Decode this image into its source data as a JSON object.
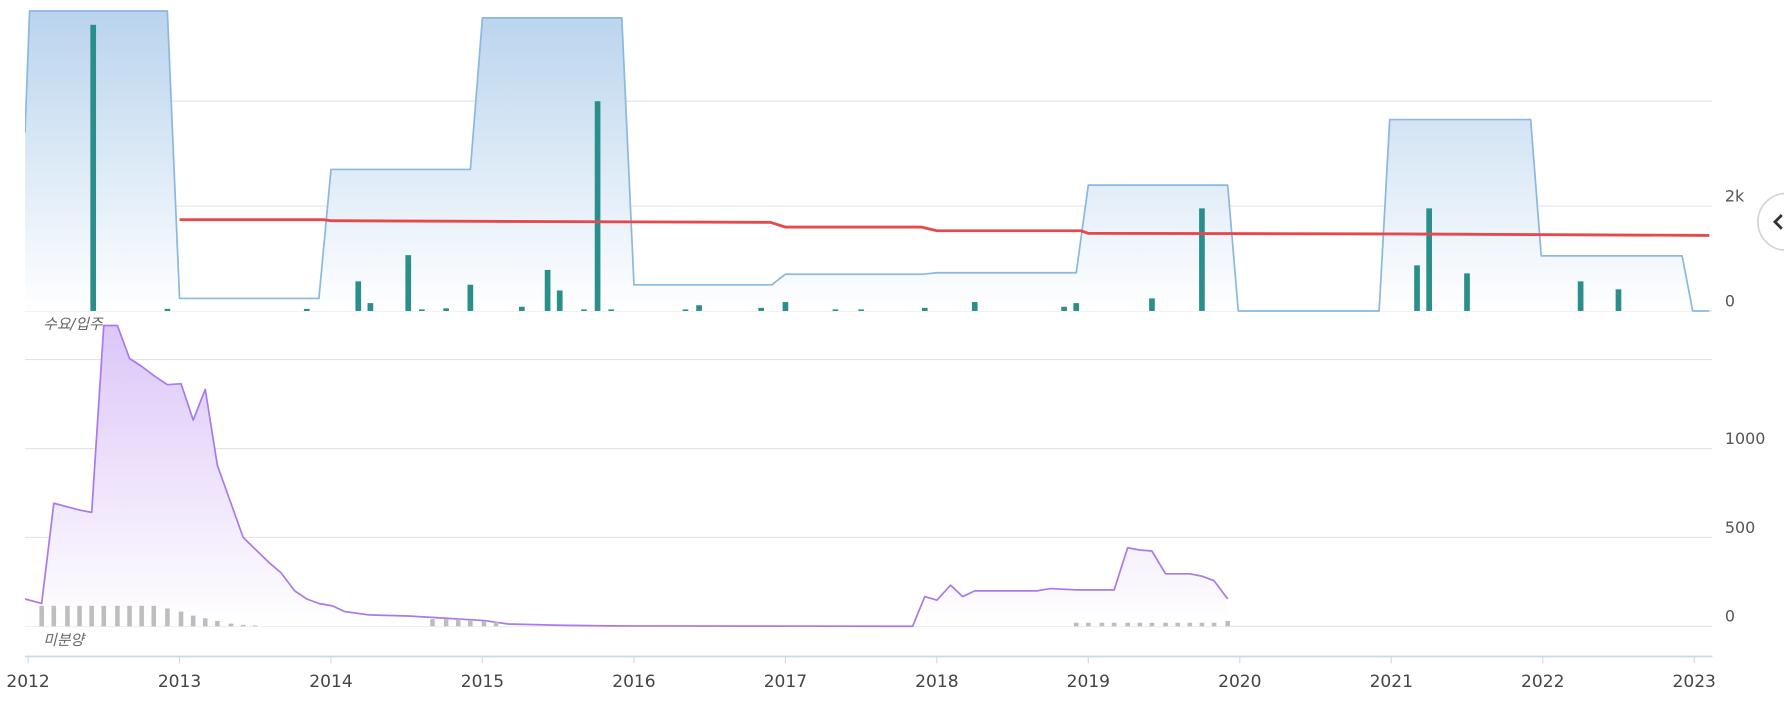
{
  "chart_data": [
    {
      "type": "combo",
      "label": "수요/입주",
      "xlim": [
        2011.98,
        2023.12
      ],
      "ylim": [
        -80,
        5930
      ],
      "yticks": [
        0,
        {
          "value": 2000,
          "label": "2k"
        },
        {
          "value": 4000,
          "label": null
        }
      ],
      "grid": true,
      "series": [
        {
          "kind": "area",
          "color": "#8ab8e0",
          "x": [
            2011.98,
            2012.01,
            2012.92,
            2013.0,
            2013.92,
            2014.0,
            2014.92,
            2015.0,
            2015.92,
            2016.0,
            2016.91,
            2017.0,
            2017.91,
            2018.0,
            2018.92,
            2019.0,
            2019.92,
            2019.99,
            2020.92,
            2020.99,
            2021.92,
            2021.99,
            2022.92,
            2022.99,
            2023.1
          ],
          "values": [
            3400,
            5720,
            5720,
            240,
            240,
            2700,
            2700,
            5590,
            5590,
            500,
            500,
            700,
            700,
            730,
            730,
            2400,
            2400,
            0,
            0,
            3650,
            3650,
            1050,
            1050,
            0,
            0
          ]
        },
        {
          "kind": "bar",
          "color": "#2a8f8a",
          "x": [
            2012.43,
            2012.92,
            2013.84,
            2014.18,
            2014.26,
            2014.51,
            2014.6,
            2014.76,
            2014.92,
            2015.26,
            2015.43,
            2015.51,
            2015.67,
            2015.76,
            2015.85,
            2016.34,
            2016.43,
            2016.84,
            2017.0,
            2017.33,
            2017.5,
            2017.92,
            2018.25,
            2018.84,
            2018.92,
            2019.42,
            2019.75,
            2021.17,
            2021.25,
            2021.5,
            2022.25,
            2022.5
          ],
          "values": [
            5457,
            40,
            40,
            565,
            150,
            1065,
            30,
            50,
            500,
            80,
            783,
            391,
            30,
            4000,
            30,
            30,
            110,
            60,
            170,
            30,
            30,
            60,
            170,
            80,
            150,
            240,
            1957,
            870,
            1957,
            717,
            565,
            413
          ]
        },
        {
          "kind": "line",
          "color": "#e5484d",
          "x": [
            2013.0,
            2013.95,
            2014.0,
            2015.0,
            2016.0,
            2016.9,
            2017.0,
            2017.9,
            2018.0,
            2018.95,
            2019.0,
            2021.0,
            2023.1
          ],
          "values": [
            1740,
            1740,
            1720,
            1710,
            1700,
            1690,
            1600,
            1600,
            1530,
            1530,
            1480,
            1470,
            1440
          ]
        }
      ]
    },
    {
      "type": "combo",
      "label": "미분양",
      "xlim": [
        2011.98,
        2023.12
      ],
      "ylim": [
        -170,
        1750
      ],
      "xticks": [
        2012,
        2013,
        2014,
        2015,
        2016,
        2017,
        2018,
        2019,
        2020,
        2021,
        2022,
        2023
      ],
      "yticks": [
        0,
        500,
        1000,
        {
          "value": 1500,
          "label": null
        }
      ],
      "grid": true,
      "series": [
        {
          "kind": "area",
          "color": "#a77be8",
          "x": [
            2011.98,
            2012.09,
            2012.17,
            2012.34,
            2012.42,
            2012.5,
            2012.59,
            2012.67,
            2012.75,
            2012.83,
            2012.92,
            2013.01,
            2013.09,
            2013.17,
            2013.25,
            2013.34,
            2013.42,
            2013.59,
            2013.67,
            2013.76,
            2013.84,
            2013.92,
            2014.01,
            2014.09,
            2014.25,
            2014.51,
            2014.76,
            2015.01,
            2015.17,
            2015.51,
            2015.84,
            2016.92,
            2017.84,
            2017.92,
            2018.0,
            2018.09,
            2018.17,
            2018.25,
            2018.66,
            2018.75,
            2018.92,
            2019.17,
            2019.26,
            2019.34,
            2019.42,
            2019.51,
            2019.67,
            2019.75,
            2019.83,
            2019.92
          ],
          "values": [
            154,
            128,
            692,
            654,
            641,
            1692,
            1692,
            1506,
            1462,
            1410,
            1359,
            1365,
            1160,
            1333,
            904,
            692,
            500,
            359,
            301,
            199,
            154,
            128,
            115,
            83,
            64,
            58,
            45,
            32,
            13,
            6,
            2,
            1,
            0,
            167,
            147,
            231,
            167,
            199,
            199,
            212,
            205,
            205,
            442,
            429,
            423,
            295,
            295,
            282,
            256,
            154
          ]
        },
        {
          "kind": "bar",
          "color": "#bdbdbd",
          "x": [
            2012.09,
            2012.17,
            2012.26,
            2012.34,
            2012.42,
            2012.5,
            2012.59,
            2012.67,
            2012.75,
            2012.83,
            2012.92,
            2013.01,
            2013.09,
            2013.17,
            2013.25,
            2013.34,
            2013.42,
            2013.5,
            2014.67,
            2014.76,
            2014.84,
            2014.92,
            2015.01,
            2015.09,
            2018.92,
            2019.0,
            2019.09,
            2019.17,
            2019.26,
            2019.34,
            2019.42,
            2019.51,
            2019.59,
            2019.67,
            2019.75,
            2019.83,
            2019.92
          ],
          "values": [
            115,
            115,
            115,
            115,
            115,
            115,
            115,
            115,
            115,
            115,
            100,
            83,
            60,
            45,
            30,
            15,
            8,
            5,
            40,
            40,
            40,
            35,
            30,
            25,
            20,
            20,
            20,
            20,
            20,
            20,
            20,
            20,
            20,
            20,
            20,
            20,
            30
          ]
        }
      ]
    }
  ]
}
